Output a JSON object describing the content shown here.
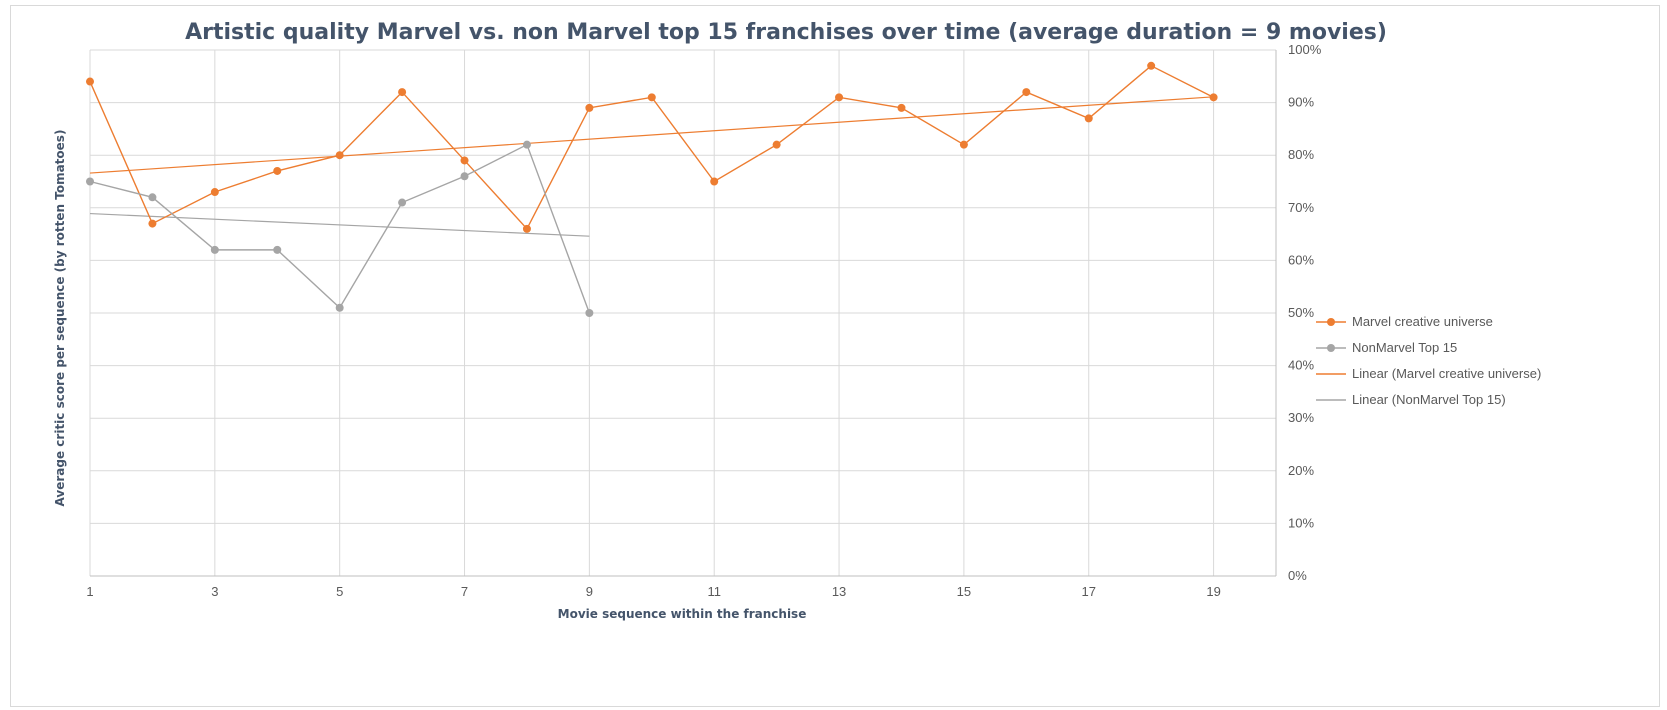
{
  "chart_data": {
    "type": "line",
    "title": "Artistic quality Marvel vs. non Marvel top 15 franchises over time (average duration = 9 movies)",
    "xlabel": "Movie sequence within the franchise",
    "ylabel": "Average critic score per sequence (by rotten Tomatoes)",
    "xlim": [
      1,
      20
    ],
    "ylim": [
      0,
      100
    ],
    "x_tick_labels": [
      "1",
      "3",
      "5",
      "7",
      "9",
      "11",
      "13",
      "15",
      "17",
      "19"
    ],
    "y_tick_labels": [
      "0%",
      "10%",
      "20%",
      "30%",
      "40%",
      "50%",
      "60%",
      "70%",
      "80%",
      "90%",
      "100%"
    ],
    "y_unit": "percent",
    "grid": true,
    "legend_position": "right",
    "series": [
      {
        "name": "Marvel creative universe",
        "color": "#ed7d31",
        "x": [
          1,
          2,
          3,
          4,
          5,
          6,
          7,
          8,
          9,
          10,
          11,
          12,
          13,
          14,
          15,
          16,
          17,
          18,
          19
        ],
        "y": [
          94,
          67,
          73,
          77,
          80,
          92,
          79,
          66,
          89,
          91,
          75,
          82,
          91,
          89,
          82,
          92,
          87,
          97,
          91
        ]
      },
      {
        "name": "NonMarvel Top 15",
        "color": "#a5a5a5",
        "x": [
          1,
          2,
          3,
          4,
          5,
          6,
          7,
          8,
          9
        ],
        "y": [
          75,
          72,
          62,
          62,
          51,
          71,
          76,
          82,
          50
        ]
      }
    ],
    "trendlines": [
      {
        "name": "Linear (Marvel creative universe)",
        "color": "#ed7d31",
        "x": [
          1,
          19
        ],
        "y": [
          76.6,
          91.1
        ]
      },
      {
        "name": "Linear (NonMarvel Top 15)",
        "color": "#a5a5a5",
        "x": [
          1,
          9
        ],
        "y": [
          68.9,
          64.6
        ]
      }
    ]
  }
}
